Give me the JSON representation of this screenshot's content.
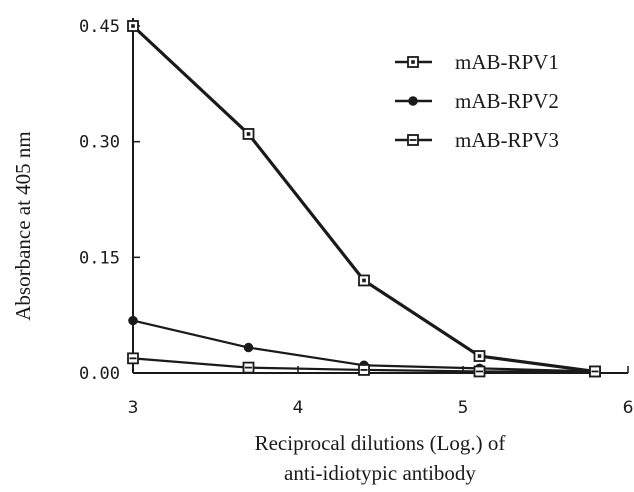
{
  "chart_data": {
    "type": "line",
    "xlabel": [
      "Reciprocal dilutions (Log.) of",
      "anti-idiotypic antibody"
    ],
    "ylabel": "Absorbance at 405 nm",
    "xlim": [
      3,
      6
    ],
    "ylim": [
      0,
      0.45
    ],
    "xticks": [
      "3",
      "4",
      "5",
      "6"
    ],
    "yticks": [
      "0.00",
      "0.15",
      "0.30",
      "0.45"
    ],
    "legend_position": "top-right",
    "grid": false,
    "x": [
      3,
      3.7,
      4.4,
      5.1,
      5.8
    ],
    "series": [
      {
        "name": "mAB-RPV1",
        "marker": "square-dot",
        "values": [
          0.45,
          0.31,
          0.12,
          0.022,
          0.002
        ]
      },
      {
        "name": "mAB-RPV2",
        "marker": "filled-circle",
        "values": [
          0.068,
          0.033,
          0.01,
          0.006,
          0.002
        ]
      },
      {
        "name": "mAB-RPV3",
        "marker": "square-bar",
        "values": [
          0.019,
          0.007,
          0.004,
          0.002,
          0.002
        ]
      }
    ],
    "colors": {
      "line": "#1a1a1a",
      "background": "#ffffff"
    }
  }
}
